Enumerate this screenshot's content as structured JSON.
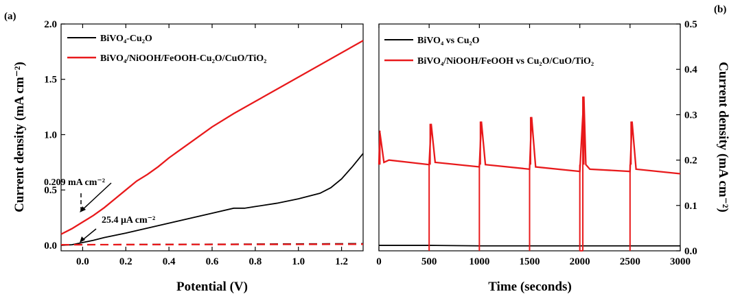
{
  "chart_data": [
    {
      "panel": "(a)",
      "type": "line",
      "xlabel": "Potential (V)",
      "ylabel": "Current density (mA cm⁻²)",
      "xlim": [
        -0.1,
        1.3
      ],
      "ylim": [
        -0.05,
        2.0
      ],
      "xticks": [
        "0.0",
        "0.2",
        "0.4",
        "0.6",
        "0.8",
        "1.0",
        "1.2"
      ],
      "yticks": [
        "0.0",
        "0.5",
        "1.0",
        "1.5",
        "2.0"
      ],
      "legend_position": "top-left",
      "grid": false,
      "series": [
        {
          "name": "BiVO₄-Cu₂O",
          "color": "#000000",
          "style": "solid",
          "x": [
            -0.1,
            -0.05,
            0.0,
            0.05,
            0.1,
            0.2,
            0.3,
            0.4,
            0.5,
            0.6,
            0.7,
            0.75,
            0.8,
            0.9,
            1.0,
            1.1,
            1.15,
            1.2,
            1.25,
            1.3
          ],
          "y": [
            0.0,
            0.005,
            0.025,
            0.045,
            0.07,
            0.11,
            0.155,
            0.2,
            0.245,
            0.29,
            0.335,
            0.335,
            0.35,
            0.38,
            0.42,
            0.47,
            0.52,
            0.6,
            0.71,
            0.83
          ]
        },
        {
          "name": "BiVO₄/NiOOH/FeOOH-Cu₂O/CuO/TiO₂",
          "color": "#e8191b",
          "style": "solid",
          "x": [
            -0.1,
            -0.05,
            0.0,
            0.05,
            0.1,
            0.15,
            0.2,
            0.25,
            0.3,
            0.35,
            0.4,
            0.5,
            0.6,
            0.7,
            0.8,
            0.9,
            1.0,
            1.1,
            1.2,
            1.3
          ],
          "y": [
            0.1,
            0.15,
            0.21,
            0.27,
            0.34,
            0.42,
            0.5,
            0.58,
            0.64,
            0.71,
            0.79,
            0.93,
            1.07,
            1.19,
            1.3,
            1.41,
            1.52,
            1.63,
            1.74,
            1.85
          ]
        },
        {
          "color": "#000000",
          "style": "dashed",
          "x": [
            -0.1,
            1.3
          ],
          "y": [
            0.005,
            0.015
          ]
        },
        {
          "color": "#e8191b",
          "style": "dashed",
          "x": [
            -0.1,
            1.3
          ],
          "y": [
            0.005,
            0.01
          ]
        }
      ],
      "annotations": [
        {
          "text": "0.209 mA cm⁻²",
          "x": 0.0,
          "y": 0.209
        },
        {
          "text": "25.4 μA cm⁻²",
          "x": 0.0,
          "y": 0.0254
        }
      ]
    },
    {
      "panel": "(b)",
      "type": "line",
      "xlabel": "Time (seconds)",
      "ylabel": "Current density (mA cm⁻²)",
      "xlim": [
        0,
        3000
      ],
      "ylim": [
        0,
        0.5
      ],
      "xticks": [
        "0",
        "500",
        "1000",
        "1500",
        "2000",
        "2500",
        "3000"
      ],
      "yticks": [
        "0.0",
        "0.1",
        "0.2",
        "0.3",
        "0.4",
        "0.5"
      ],
      "y_axis_side": "right",
      "legend_position": "top-left",
      "grid": false,
      "series": [
        {
          "name": "BiVO₄ vs Cu₂O",
          "color": "#000000",
          "x": [
            0,
            500,
            1000,
            1500,
            2000,
            2020,
            2040,
            2500,
            3000
          ],
          "y": [
            0.012,
            0.012,
            0.011,
            0.011,
            0.011,
            0.011,
            0.011,
            0.011,
            0.011
          ]
        },
        {
          "name": "BiVO₄/NiOOH/FeOOH vs Cu₂O/CuO/TiO₂",
          "color": "#e8191b",
          "x": [
            0,
            10,
            50,
            100,
            300,
            500,
            520,
            560,
            1000,
            1020,
            1060,
            1500,
            1520,
            1560,
            2000,
            2040,
            2060,
            2100,
            2500,
            2520,
            2560,
            3000
          ],
          "y": [
            0.19,
            0.26,
            0.195,
            0.2,
            0.195,
            0.19,
            0.28,
            0.195,
            0.185,
            0.285,
            0.19,
            0.18,
            0.295,
            0.185,
            0.175,
            0.34,
            0.19,
            0.18,
            0.175,
            0.285,
            0.18,
            0.17
          ]
        }
      ],
      "spikes": [
        {
          "x": 10,
          "peak": 0.265
        },
        {
          "x": 510,
          "peak": 0.28
        },
        {
          "x": 1010,
          "peak": 0.285
        },
        {
          "x": 1510,
          "peak": 0.295
        },
        {
          "x": 2040,
          "peak": 0.34
        },
        {
          "x": 2510,
          "peak": 0.285
        }
      ],
      "off_periods": [
        {
          "x": 500
        },
        {
          "x": 1000
        },
        {
          "x": 1500
        },
        {
          "x": 2000,
          "x_end": 2030
        },
        {
          "x": 2500
        }
      ]
    }
  ]
}
